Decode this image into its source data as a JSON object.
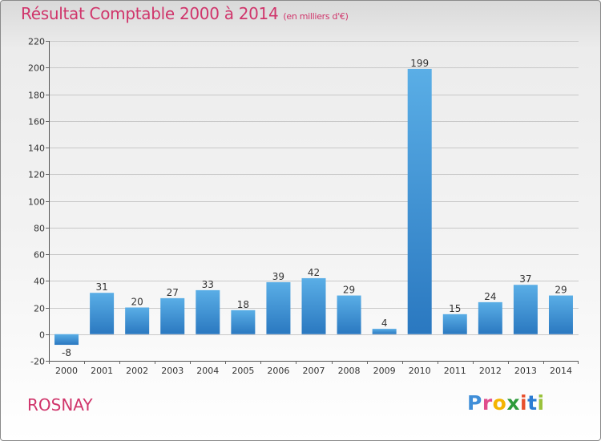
{
  "header": {
    "title": "Résultat Comptable 2000 à 2014",
    "subtitle": "(en milliers d'€)"
  },
  "footer": {
    "town": "ROSNAY",
    "logo_text": "Proxiti"
  },
  "colors": {
    "title": "#d0356b",
    "bar_top": "#5aaee6",
    "bar_bottom": "#2a78c0",
    "grid": "#c8c8c8"
  },
  "chart_data": {
    "type": "bar",
    "title": "Résultat Comptable 2000 à 2014",
    "subtitle": "(en milliers d'€)",
    "xlabel": "",
    "ylabel": "",
    "categories": [
      "2000",
      "2001",
      "2002",
      "2003",
      "2004",
      "2005",
      "2006",
      "2007",
      "2008",
      "2009",
      "2010",
      "2011",
      "2012",
      "2013",
      "2014"
    ],
    "values": [
      -8,
      31,
      20,
      27,
      33,
      18,
      39,
      42,
      29,
      4,
      199,
      15,
      24,
      37,
      29
    ],
    "ylim": [
      -20,
      220
    ],
    "yticks": [
      -20,
      0,
      20,
      40,
      60,
      80,
      100,
      120,
      140,
      160,
      180,
      200,
      220
    ],
    "grid": true
  }
}
